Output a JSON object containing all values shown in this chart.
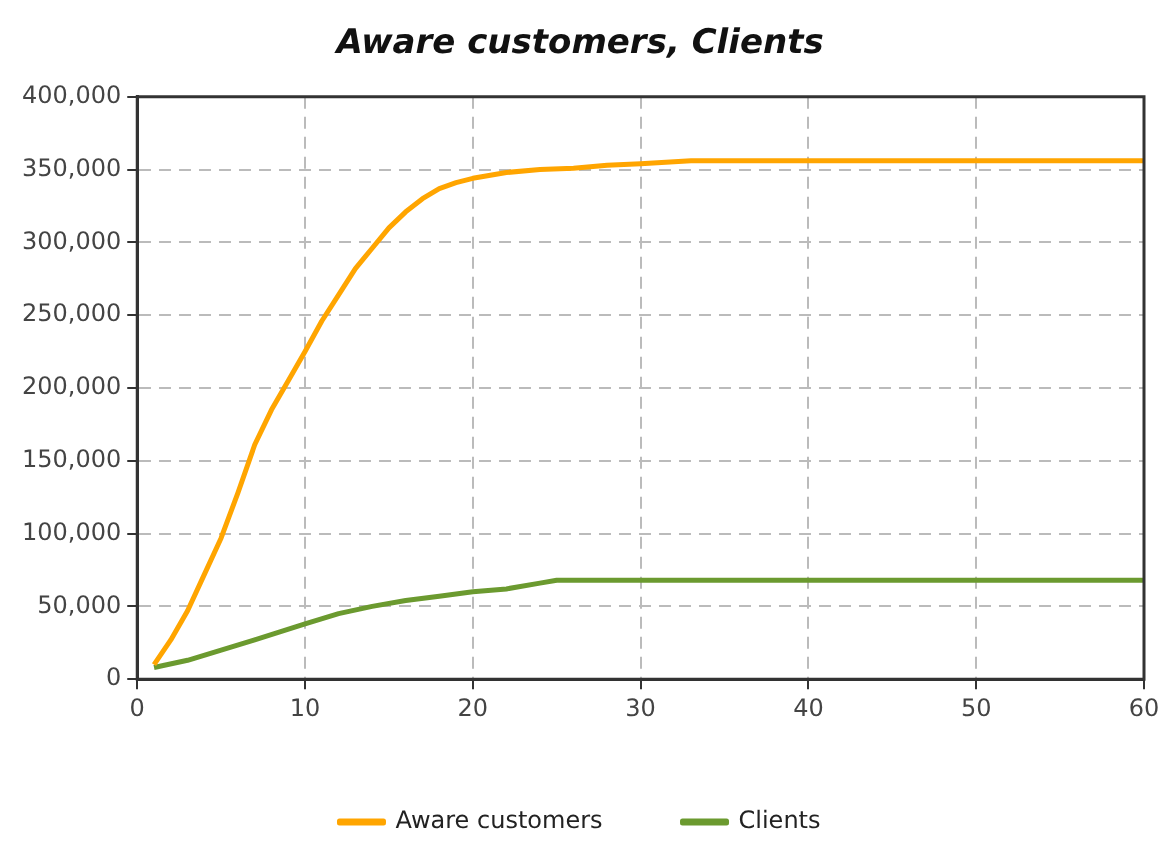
{
  "chart_data": {
    "type": "line",
    "title": "Aware customers, Clients",
    "series": [
      {
        "name": "Aware customers",
        "color": "#ffa500",
        "x": [
          1,
          2,
          3,
          4,
          5,
          6,
          7,
          8,
          9,
          10,
          11,
          12,
          13,
          14,
          15,
          16,
          17,
          18,
          19,
          20,
          22,
          24,
          26,
          28,
          30,
          33,
          40,
          50,
          60
        ],
        "values": [
          10000,
          27000,
          47000,
          72000,
          97000,
          128000,
          161000,
          185000,
          205000,
          225000,
          246000,
          264000,
          282000,
          296000,
          310000,
          321000,
          330000,
          337000,
          341000,
          344000,
          348000,
          350000,
          351000,
          353000,
          354000,
          356000,
          356000,
          356000,
          356000
        ]
      },
      {
        "name": "Clients",
        "color": "#6b9a2f",
        "x": [
          1,
          3,
          5,
          7,
          10,
          12,
          14,
          16,
          18,
          20,
          22,
          24,
          25,
          30,
          40,
          50,
          60
        ],
        "values": [
          8000,
          13000,
          20000,
          27000,
          38000,
          45000,
          50000,
          54000,
          57000,
          60000,
          62000,
          66000,
          68000,
          68000,
          68000,
          68000,
          68000
        ]
      }
    ],
    "xlim": [
      0,
      60
    ],
    "xticks": [
      0,
      10,
      20,
      30,
      40,
      50,
      60
    ],
    "ylim": [
      0,
      400000
    ],
    "yticks": [
      0,
      {
        "value": 50000,
        "label": "50,000"
      },
      {
        "value": 100000,
        "label": "100,000"
      },
      {
        "value": 150000,
        "label": "150,000"
      },
      {
        "value": 200000,
        "label": "200,000"
      },
      {
        "value": 250000,
        "label": "250,000"
      },
      {
        "value": 300000,
        "label": "300,000"
      },
      {
        "value": 350000,
        "label": "350,000"
      },
      {
        "value": 400000,
        "label": "400,000"
      }
    ],
    "grid": true,
    "legend": "bottom",
    "marker": "none",
    "line_style": "solid"
  }
}
